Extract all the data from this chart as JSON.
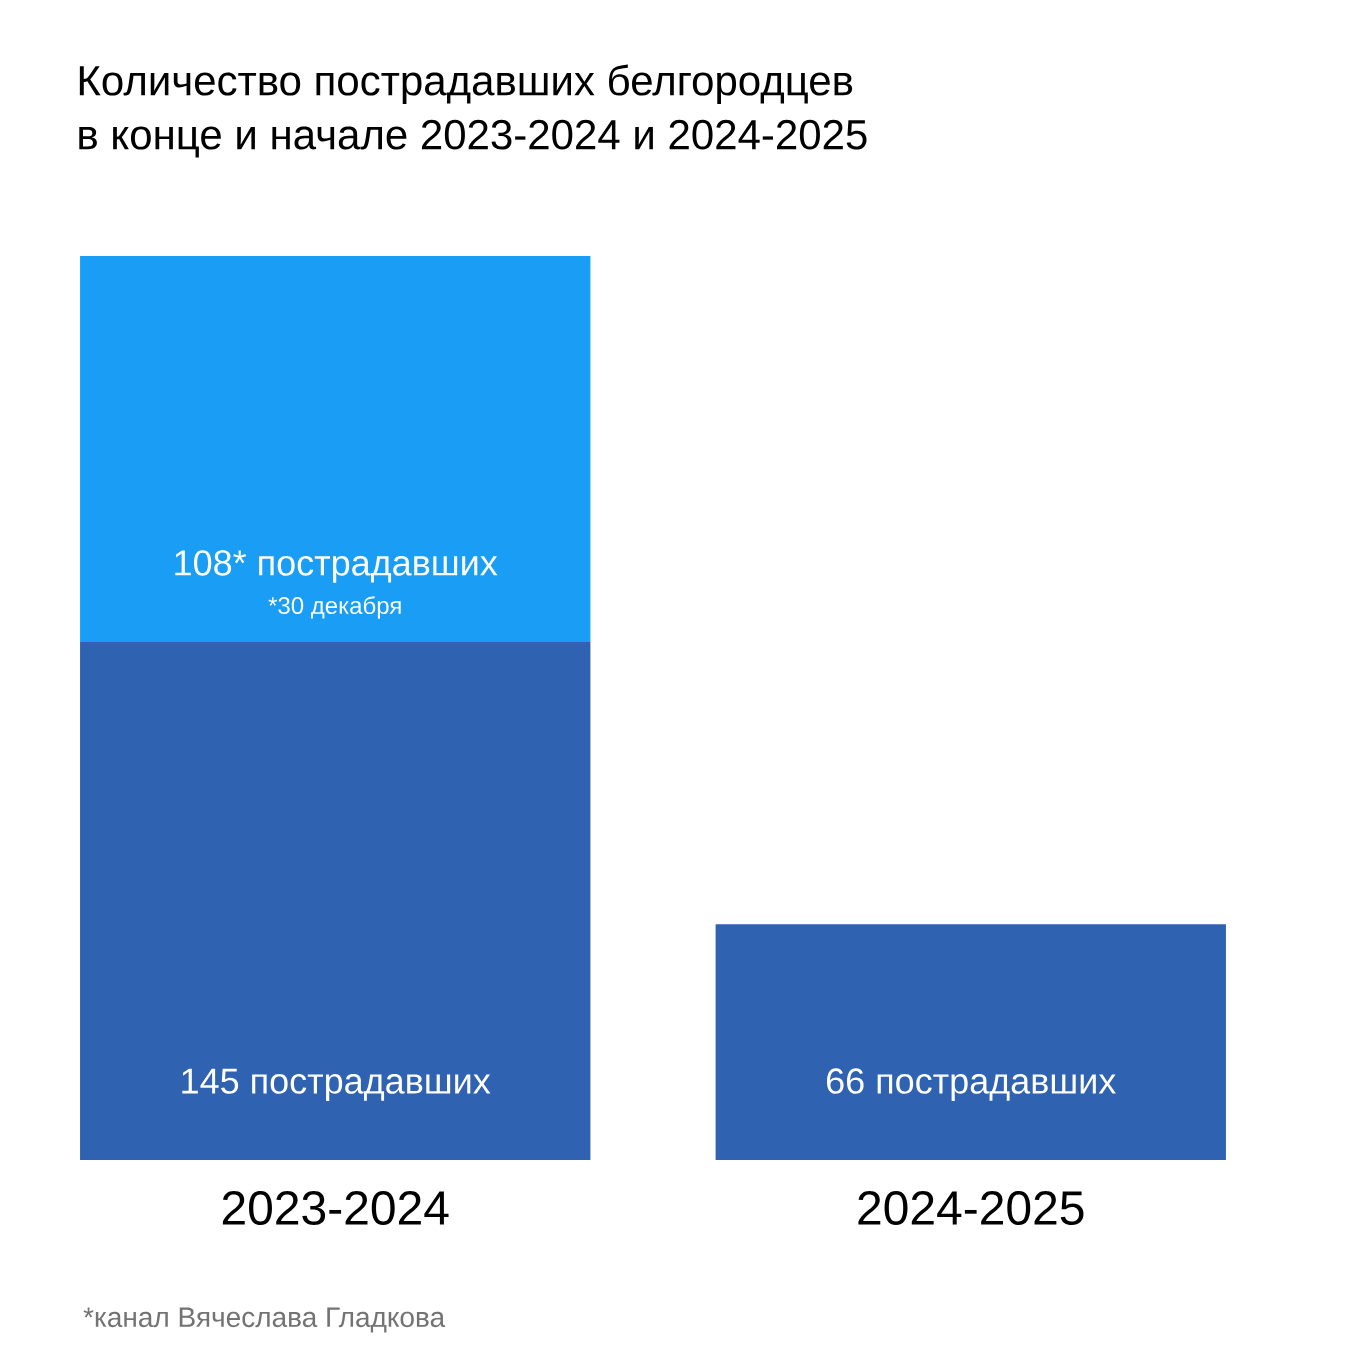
{
  "chart_data": {
    "type": "bar",
    "stacked": true,
    "title": "Количество пострадавших белгородцев\nв конце и начале 2023-2024 и 2024-2025",
    "categories": [
      "2023-2024",
      "2024-2025"
    ],
    "series": [
      {
        "color": "#2f62b0",
        "values": [
          145,
          66
        ],
        "value_labels": [
          "145 пострадавших",
          "66 пострадавших"
        ]
      },
      {
        "color": "#1a9ef5",
        "values": [
          108,
          null
        ],
        "value_labels": [
          "108* пострадавших",
          null
        ]
      }
    ],
    "annotations": [
      {
        "text": "*30 декабря",
        "x": "2023-2024",
        "y": 145
      },
      "*канал Вячеслава Гладкова"
    ]
  }
}
